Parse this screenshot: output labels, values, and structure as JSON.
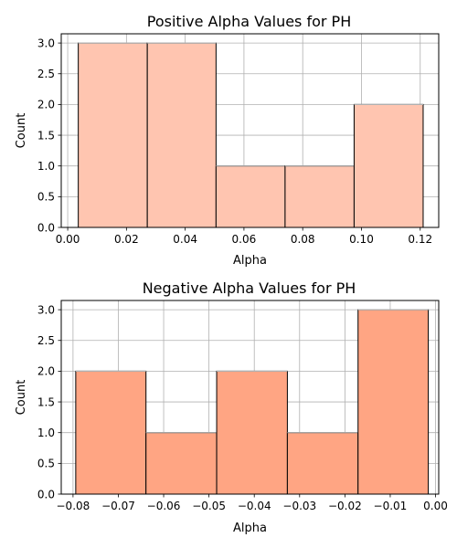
{
  "chart_data": [
    {
      "type": "bar",
      "title": "Positive Alpha Values for PH",
      "xlabel": "Alpha",
      "ylabel": "Count",
      "xlim": [
        -0.0022,
        0.1263
      ],
      "ylim": [
        0,
        3.15
      ],
      "xticks": [
        "0.00",
        "0.02",
        "0.04",
        "0.06",
        "0.08",
        "0.10",
        "0.12"
      ],
      "xtick_values": [
        0.0,
        0.02,
        0.04,
        0.06,
        0.08,
        0.1,
        0.12
      ],
      "yticks": [
        "0.0",
        "0.5",
        "1.0",
        "1.5",
        "2.0",
        "2.5",
        "3.0"
      ],
      "ytick_values": [
        0.0,
        0.5,
        1.0,
        1.5,
        2.0,
        2.5,
        3.0
      ],
      "bin_edges": [
        0.0036,
        0.0271,
        0.0505,
        0.074,
        0.0975,
        0.121
      ],
      "values": [
        3,
        3,
        1,
        1,
        2
      ],
      "bar_color": "#ffc5b0",
      "grid": true
    },
    {
      "type": "bar",
      "title": "Negative Alpha Values for PH",
      "xlabel": "Alpha",
      "ylabel": "Count",
      "xlim": [
        -0.0826,
        0.0007
      ],
      "ylim": [
        0,
        3.15
      ],
      "xticks": [
        "−0.08",
        "−0.07",
        "−0.06",
        "−0.05",
        "−0.04",
        "−0.03",
        "−0.02",
        "−0.01",
        "0.00"
      ],
      "xtick_values": [
        -0.08,
        -0.07,
        -0.06,
        -0.05,
        -0.04,
        -0.03,
        -0.02,
        -0.01,
        0.0
      ],
      "yticks": [
        "0.0",
        "0.5",
        "1.0",
        "1.5",
        "2.0",
        "2.5",
        "3.0"
      ],
      "ytick_values": [
        0.0,
        0.5,
        1.0,
        1.5,
        2.0,
        2.5,
        3.0
      ],
      "bin_edges": [
        -0.0794,
        -0.0639,
        -0.0483,
        -0.0327,
        -0.0171,
        -0.0016
      ],
      "values": [
        2,
        1,
        2,
        1,
        3
      ],
      "bar_color": "#ffa583",
      "grid": true
    }
  ]
}
